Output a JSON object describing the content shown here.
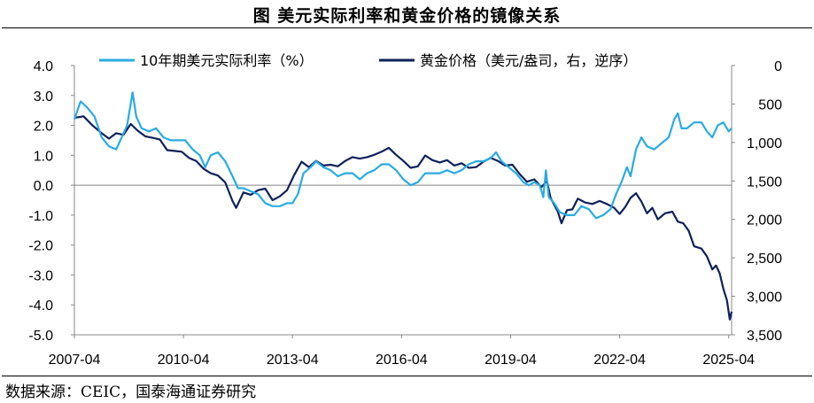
{
  "header": {
    "title": "图  美元实际利率和黄金价格的镜像关系"
  },
  "footer": {
    "source": "数据来源：CEIC，国泰海通证券研究"
  },
  "chart_data": {
    "type": "line",
    "title": "图  美元实际利率和黄金价格的镜像关系",
    "x_start": 2007.25,
    "x_end": 2025.33,
    "x_ticks": [
      {
        "label": "2007-04",
        "value": 2007.25
      },
      {
        "label": "2010-04",
        "value": 2010.25
      },
      {
        "label": "2013-04",
        "value": 2013.25
      },
      {
        "label": "2016-04",
        "value": 2016.25
      },
      {
        "label": "2019-04",
        "value": 2019.25
      },
      {
        "label": "2022-04",
        "value": 2022.25
      },
      {
        "label": "2025-04",
        "value": 2025.25
      }
    ],
    "y_left": {
      "min": -5.0,
      "max": 4.0,
      "ticks": [
        "4.0",
        "3.0",
        "2.0",
        "1.0",
        "0.0",
        "-1.0",
        "-2.0",
        "-3.0",
        "-4.0",
        "-5.0"
      ],
      "tick_values": [
        4,
        3,
        2,
        1,
        0,
        -1,
        -2,
        -3,
        -4,
        -5
      ]
    },
    "y_right": {
      "min": 0,
      "max": 3500,
      "inverted": true,
      "ticks": [
        "0",
        "500",
        "1,000",
        "1,500",
        "2,000",
        "2,500",
        "3,000",
        "3,500"
      ],
      "tick_values": [
        0,
        500,
        1000,
        1500,
        2000,
        2500,
        3000,
        3500
      ]
    },
    "series": [
      {
        "name": "10年期美元实际利率（%）",
        "axis": "left",
        "color": "#29abe2",
        "points": [
          [
            2007.25,
            2.2
          ],
          [
            2007.42,
            2.8
          ],
          [
            2007.6,
            2.6
          ],
          [
            2007.8,
            2.3
          ],
          [
            2008.0,
            1.6
          ],
          [
            2008.2,
            1.3
          ],
          [
            2008.4,
            1.2
          ],
          [
            2008.55,
            1.6
          ],
          [
            2008.7,
            2.0
          ],
          [
            2008.85,
            3.1
          ],
          [
            2008.95,
            2.3
          ],
          [
            2009.1,
            1.9
          ],
          [
            2009.3,
            1.8
          ],
          [
            2009.5,
            1.9
          ],
          [
            2009.7,
            1.6
          ],
          [
            2009.9,
            1.5
          ],
          [
            2010.1,
            1.5
          ],
          [
            2010.3,
            1.5
          ],
          [
            2010.5,
            1.2
          ],
          [
            2010.7,
            1.0
          ],
          [
            2010.85,
            0.6
          ],
          [
            2011.0,
            1.0
          ],
          [
            2011.2,
            1.1
          ],
          [
            2011.4,
            0.8
          ],
          [
            2011.6,
            0.3
          ],
          [
            2011.75,
            -0.1
          ],
          [
            2011.9,
            -0.1
          ],
          [
            2012.1,
            -0.2
          ],
          [
            2012.3,
            -0.3
          ],
          [
            2012.5,
            -0.6
          ],
          [
            2012.7,
            -0.7
          ],
          [
            2012.9,
            -0.7
          ],
          [
            2013.1,
            -0.6
          ],
          [
            2013.25,
            -0.6
          ],
          [
            2013.4,
            -0.3
          ],
          [
            2013.55,
            0.4
          ],
          [
            2013.75,
            0.6
          ],
          [
            2013.9,
            0.8
          ],
          [
            2014.1,
            0.6
          ],
          [
            2014.3,
            0.5
          ],
          [
            2014.5,
            0.3
          ],
          [
            2014.7,
            0.4
          ],
          [
            2014.9,
            0.4
          ],
          [
            2015.1,
            0.2
          ],
          [
            2015.3,
            0.4
          ],
          [
            2015.5,
            0.5
          ],
          [
            2015.7,
            0.7
          ],
          [
            2015.9,
            0.7
          ],
          [
            2016.1,
            0.5
          ],
          [
            2016.3,
            0.2
          ],
          [
            2016.5,
            0.0
          ],
          [
            2016.7,
            0.1
          ],
          [
            2016.9,
            0.4
          ],
          [
            2017.1,
            0.4
          ],
          [
            2017.3,
            0.4
          ],
          [
            2017.5,
            0.5
          ],
          [
            2017.7,
            0.4
          ],
          [
            2017.9,
            0.5
          ],
          [
            2018.1,
            0.7
          ],
          [
            2018.3,
            0.8
          ],
          [
            2018.5,
            0.8
          ],
          [
            2018.7,
            0.9
          ],
          [
            2018.85,
            1.1
          ],
          [
            2019.0,
            0.8
          ],
          [
            2019.2,
            0.6
          ],
          [
            2019.4,
            0.4
          ],
          [
            2019.6,
            0.1
          ],
          [
            2019.75,
            0.0
          ],
          [
            2019.9,
            0.1
          ],
          [
            2020.05,
            0.0
          ],
          [
            2020.15,
            -0.4
          ],
          [
            2020.22,
            0.5
          ],
          [
            2020.3,
            -0.4
          ],
          [
            2020.45,
            -0.6
          ],
          [
            2020.6,
            -0.9
          ],
          [
            2020.8,
            -1.0
          ],
          [
            2021.0,
            -1.0
          ],
          [
            2021.2,
            -0.7
          ],
          [
            2021.4,
            -0.8
          ],
          [
            2021.6,
            -1.1
          ],
          [
            2021.8,
            -1.0
          ],
          [
            2022.0,
            -0.8
          ],
          [
            2022.15,
            -0.3
          ],
          [
            2022.3,
            0.1
          ],
          [
            2022.45,
            0.6
          ],
          [
            2022.55,
            0.3
          ],
          [
            2022.7,
            1.2
          ],
          [
            2022.85,
            1.6
          ],
          [
            2023.0,
            1.3
          ],
          [
            2023.2,
            1.2
          ],
          [
            2023.4,
            1.4
          ],
          [
            2023.6,
            1.6
          ],
          [
            2023.75,
            2.2
          ],
          [
            2023.85,
            2.4
          ],
          [
            2023.95,
            1.9
          ],
          [
            2024.1,
            1.9
          ],
          [
            2024.3,
            2.1
          ],
          [
            2024.5,
            2.1
          ],
          [
            2024.65,
            1.8
          ],
          [
            2024.8,
            1.6
          ],
          [
            2024.95,
            2.0
          ],
          [
            2025.1,
            2.1
          ],
          [
            2025.25,
            1.8
          ],
          [
            2025.33,
            1.9
          ]
        ]
      },
      {
        "name": "黄金价格（美元/盎司，右，逆序）",
        "axis": "right",
        "color": "#0d2159",
        "points": [
          [
            2007.25,
            680
          ],
          [
            2007.5,
            660
          ],
          [
            2007.75,
            780
          ],
          [
            2008.0,
            880
          ],
          [
            2008.2,
            950
          ],
          [
            2008.4,
            880
          ],
          [
            2008.6,
            900
          ],
          [
            2008.8,
            760
          ],
          [
            2009.0,
            850
          ],
          [
            2009.2,
            920
          ],
          [
            2009.4,
            940
          ],
          [
            2009.6,
            960
          ],
          [
            2009.8,
            1100
          ],
          [
            2010.0,
            1110
          ],
          [
            2010.2,
            1120
          ],
          [
            2010.4,
            1200
          ],
          [
            2010.6,
            1240
          ],
          [
            2010.8,
            1340
          ],
          [
            2011.0,
            1400
          ],
          [
            2011.2,
            1430
          ],
          [
            2011.4,
            1520
          ],
          [
            2011.6,
            1760
          ],
          [
            2011.7,
            1850
          ],
          [
            2011.9,
            1650
          ],
          [
            2012.1,
            1680
          ],
          [
            2012.3,
            1620
          ],
          [
            2012.5,
            1600
          ],
          [
            2012.7,
            1750
          ],
          [
            2012.9,
            1700
          ],
          [
            2013.1,
            1620
          ],
          [
            2013.3,
            1420
          ],
          [
            2013.5,
            1250
          ],
          [
            2013.7,
            1320
          ],
          [
            2013.9,
            1240
          ],
          [
            2014.1,
            1300
          ],
          [
            2014.3,
            1290
          ],
          [
            2014.5,
            1310
          ],
          [
            2014.7,
            1240
          ],
          [
            2014.9,
            1190
          ],
          [
            2015.1,
            1210
          ],
          [
            2015.3,
            1190
          ],
          [
            2015.5,
            1160
          ],
          [
            2015.7,
            1120
          ],
          [
            2015.9,
            1070
          ],
          [
            2016.1,
            1160
          ],
          [
            2016.3,
            1240
          ],
          [
            2016.5,
            1330
          ],
          [
            2016.7,
            1310
          ],
          [
            2016.9,
            1170
          ],
          [
            2017.1,
            1230
          ],
          [
            2017.3,
            1260
          ],
          [
            2017.5,
            1230
          ],
          [
            2017.7,
            1300
          ],
          [
            2017.9,
            1270
          ],
          [
            2018.1,
            1330
          ],
          [
            2018.3,
            1320
          ],
          [
            2018.5,
            1250
          ],
          [
            2018.7,
            1200
          ],
          [
            2018.9,
            1240
          ],
          [
            2019.1,
            1300
          ],
          [
            2019.3,
            1290
          ],
          [
            2019.5,
            1410
          ],
          [
            2019.7,
            1510
          ],
          [
            2019.9,
            1480
          ],
          [
            2020.1,
            1580
          ],
          [
            2020.25,
            1500
          ],
          [
            2020.35,
            1720
          ],
          [
            2020.55,
            1900
          ],
          [
            2020.65,
            2050
          ],
          [
            2020.8,
            1880
          ],
          [
            2020.95,
            1870
          ],
          [
            2021.1,
            1730
          ],
          [
            2021.3,
            1780
          ],
          [
            2021.5,
            1800
          ],
          [
            2021.7,
            1760
          ],
          [
            2021.9,
            1800
          ],
          [
            2022.1,
            1850
          ],
          [
            2022.25,
            1930
          ],
          [
            2022.4,
            1840
          ],
          [
            2022.55,
            1720
          ],
          [
            2022.7,
            1660
          ],
          [
            2022.85,
            1770
          ],
          [
            2023.0,
            1920
          ],
          [
            2023.15,
            1850
          ],
          [
            2023.3,
            2000
          ],
          [
            2023.5,
            1920
          ],
          [
            2023.7,
            1900
          ],
          [
            2023.85,
            2030
          ],
          [
            2024.0,
            2050
          ],
          [
            2024.15,
            2150
          ],
          [
            2024.3,
            2350
          ],
          [
            2024.5,
            2380
          ],
          [
            2024.65,
            2480
          ],
          [
            2024.8,
            2650
          ],
          [
            2024.9,
            2600
          ],
          [
            2025.0,
            2700
          ],
          [
            2025.1,
            2900
          ],
          [
            2025.2,
            3050
          ],
          [
            2025.28,
            3300
          ],
          [
            2025.33,
            3200
          ]
        ]
      }
    ]
  }
}
